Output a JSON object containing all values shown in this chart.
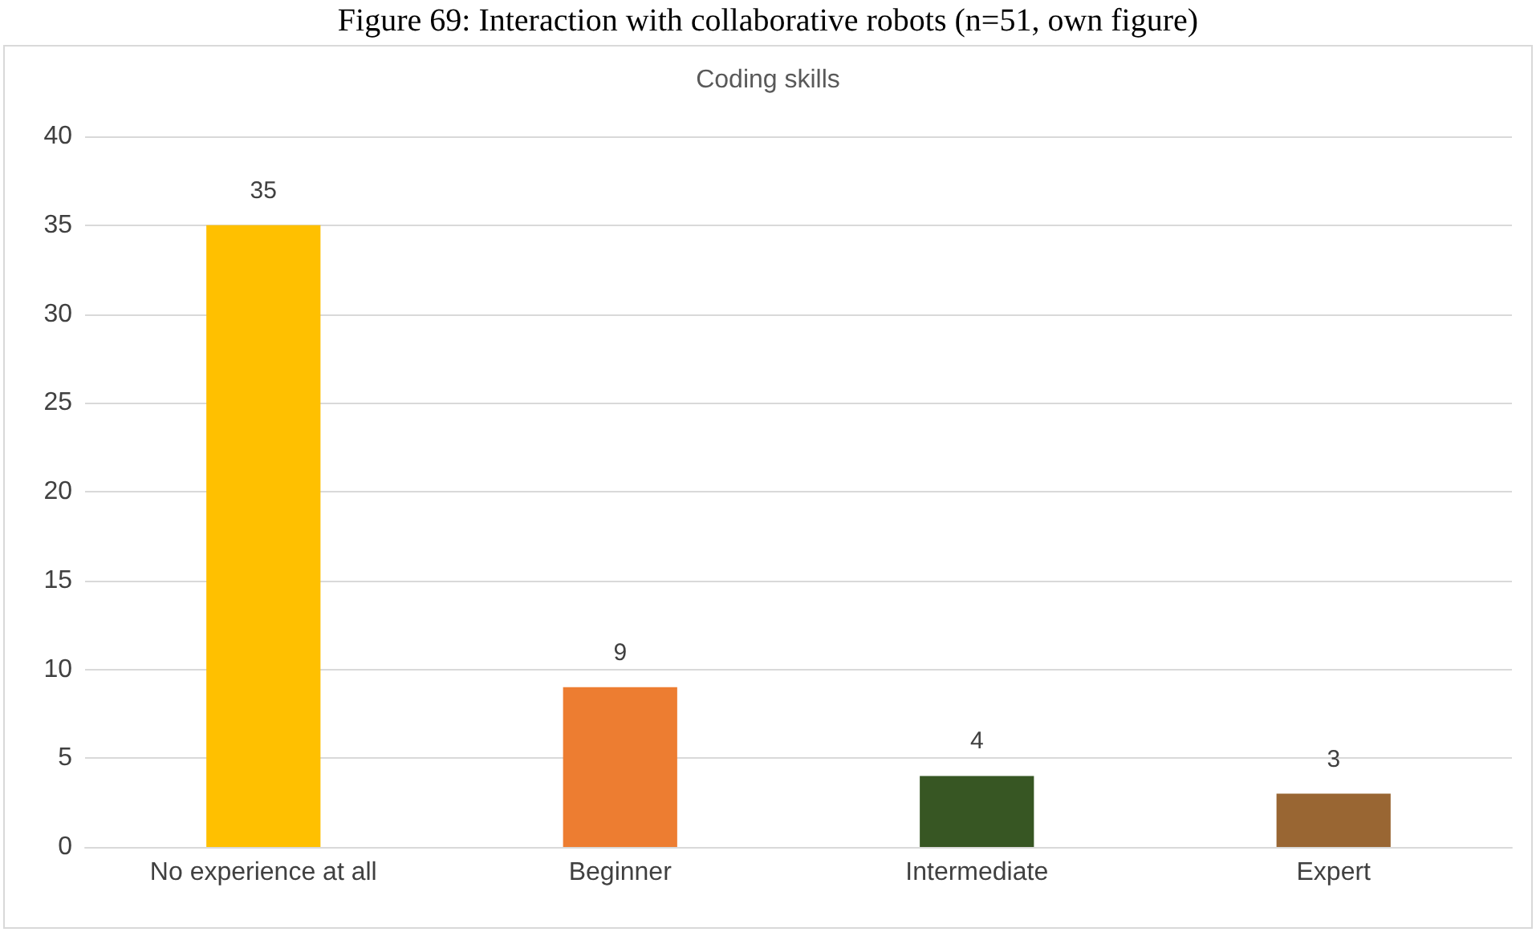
{
  "chart_data": {
    "type": "bar",
    "title": "Coding skills",
    "annotations": [
      "Figure 69: Interaction with collaborative robots (n=51, own figure)"
    ],
    "categories": [
      "No experience at all",
      "Beginner",
      "Intermediate",
      "Expert"
    ],
    "values": [
      35,
      9,
      4,
      3
    ],
    "colors": [
      "#ffc000",
      "#ed7d31",
      "#375623",
      "#996633"
    ],
    "ylim": [
      0,
      40
    ],
    "yticks": [
      0,
      5,
      10,
      15,
      20,
      25,
      30,
      35,
      40
    ],
    "grid": "y",
    "data_labels": true
  }
}
